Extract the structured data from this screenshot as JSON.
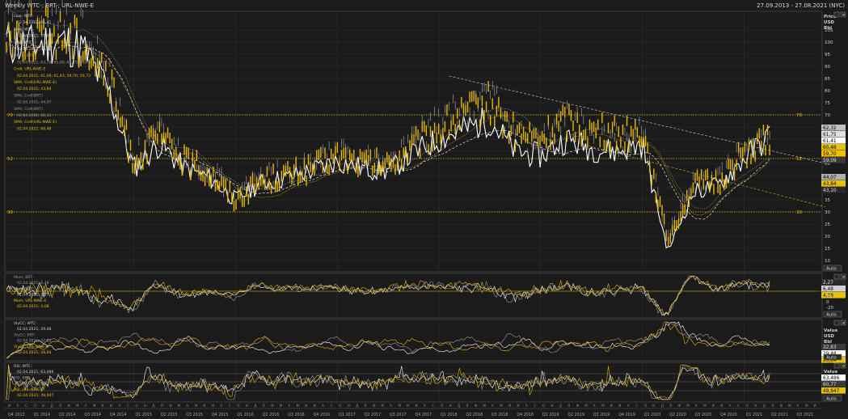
{
  "title": "Weekly WTC-; BRT-; URL-NWE-E",
  "date_range": "27.09.2013 - 27.08.2021 (NYC)",
  "right_axis": {
    "header": [
      "Price",
      "USD",
      "Bbl"
    ]
  },
  "price_axis": {
    "ticks": [
      105,
      100,
      95,
      90,
      85,
      80,
      75,
      70,
      65,
      60,
      55,
      50,
      45,
      40,
      35,
      30,
      25,
      20,
      15,
      10
    ],
    "badges": [
      {
        "text": "62,32",
        "bg": "#c0c0c0",
        "fg": "#000000"
      },
      {
        "text": "61,75",
        "bg": "#e0e0e0",
        "fg": "#000000"
      },
      {
        "text": "61,41",
        "bg": "#ffffff",
        "fg": "#000000"
      },
      {
        "text": "60,48",
        "bg": "#e6c200",
        "fg": "#000000"
      },
      {
        "text": "59,70",
        "bg": "#f0c000",
        "fg": "#000000"
      },
      {
        "text": "59,09",
        "bg": "#3a3a3a",
        "fg": "#dddddd"
      },
      {
        "text": "44,07",
        "bg": "#b0b0b0",
        "fg": "#000000"
      },
      {
        "text": "43,84",
        "bg": "#e6c200",
        "fg": "#000000"
      },
      {
        "text": "43,10",
        "bg": "#2a2a2a",
        "fg": "#dddddd"
      }
    ],
    "hlines": [
      {
        "label": "70",
        "value": 70
      },
      {
        "label": "52",
        "value": 52
      },
      {
        "label": "30",
        "value": 30
      }
    ],
    "auto_label": "Auto"
  },
  "legends": {
    "price": [
      "Line; WTC-",
      "02.04.2021; 61,41",
      "Stoc; WTC-",
      "02.04.2021; 59,09",
      "SMA; WTC-",
      "02.04.2021; 43,10",
      "OHLC; BRT-",
      "02.04.2021; 63,78; 65,00; 61,75; 61,75",
      "Cndl; URL-NWE-E",
      "02.04.2021; 61,09; 61,43; 59,70; 59,73",
      "SMA; Cndl(URL-NWE-E)",
      "02.04.2021; 43,84",
      "SMA; Cndl(BRT)",
      "02.04.2021; 44,07",
      "SMA; Cndl(BRT)",
      "02.04.2021; 62,32",
      "SMA; Cndl(URL-NWE-E)",
      "02.04.2021; 60,48"
    ],
    "mom": [
      "Mom; BRT-",
      "02.04.2021; 6,48",
      "Mom; WTC-",
      "02.04.2021; 2,27",
      "Mom; URL-NWE-E",
      "02.04.2021; 4,08"
    ],
    "vol": [
      "VlyCC; WTC-",
      "02.04.2021; 29,48",
      "VlyCC; BRT-",
      "02.04.2021; 32,83",
      "VlyCC; URL-NWE-E",
      "02.04.2021; 28,84"
    ],
    "rsi": [
      "RSI; WTC-",
      "02.04.2021; 63,486",
      "RSI; BRT-",
      "02.04.2021; 60,77",
      "RSI; URL-NWE-E",
      "02.04.2021; 49,947"
    ]
  },
  "mom_axis": {
    "ticks": [
      20,
      0,
      -20,
      -40
    ],
    "badges": [
      {
        "text": "2,27",
        "bg": "#2a2a2a",
        "fg": "#dddddd"
      },
      {
        "text": "6,48",
        "bg": "#d0d0d0",
        "fg": "#000000"
      },
      {
        "text": "4,08",
        "bg": "#e6c200",
        "fg": "#000000"
      }
    ],
    "auto_label": "Auto"
  },
  "vol_axis": {
    "header": [
      "Value",
      "USD",
      "Bbl"
    ],
    "badges": [
      {
        "text": "32,83",
        "bg": "#3a3a3a",
        "fg": "#dddddd"
      },
      {
        "text": "29,48",
        "bg": "#ffffff",
        "fg": "#000000"
      },
      {
        "text": "28,84",
        "bg": "#e6c200",
        "fg": "#000000"
      }
    ],
    "auto_label": "Auto"
  },
  "rsi_axis": {
    "header": [
      "Value"
    ],
    "badges": [
      {
        "text": "63,486",
        "bg": "#ffffff",
        "fg": "#000000"
      },
      {
        "text": "60,77",
        "bg": "#3a3a3a",
        "fg": "#dddddd"
      },
      {
        "text": "49,947",
        "bg": "#e6c200",
        "fg": "#000000"
      }
    ],
    "auto_label": "Auto"
  },
  "x_labels": [
    "Q4 2013",
    "Q1 2014",
    "Q2 2014",
    "Q3 2014",
    "Q4 2014",
    "Q1 2015",
    "Q2 2015",
    "Q3 2015",
    "Q4 2015",
    "Q1 2016",
    "Q2 2016",
    "Q3 2016",
    "Q4 2016",
    "Q1 2017",
    "Q2 2017",
    "Q3 2017",
    "Q4 2017",
    "Q1 2018",
    "Q2 2018",
    "Q3 2018",
    "Q4 2018",
    "Q1 2019",
    "Q2 2019",
    "Q3 2019",
    "Q4 2019",
    "Q1 2020",
    "Q2 2020",
    "Q3 2020",
    "Q4 2020",
    "Q1 2021",
    "Q2 2021",
    "Q3 2021"
  ],
  "colors": {
    "wtc": "#ffffff",
    "brt": "#9a9a9a",
    "url": "#e6b800",
    "bg": "#1b1b1b",
    "grid": "#2e2e2e"
  },
  "icons": [
    "square-icon",
    "close-icon"
  ],
  "chart_data": {
    "type": "line",
    "title": "Weekly WTC-; BRT-; URL-NWE-E",
    "xlabel": "",
    "ylabel": "Price USD Bbl",
    "ylim": [
      6,
      112
    ],
    "grid": true,
    "legend": "top-left",
    "x": [
      2013.75,
      2014.0,
      2014.25,
      2014.5,
      2014.75,
      2015.0,
      2015.25,
      2015.5,
      2015.75,
      2016.0,
      2016.25,
      2016.5,
      2016.75,
      2017.0,
      2017.25,
      2017.5,
      2017.75,
      2018.0,
      2018.25,
      2018.5,
      2018.75,
      2019.0,
      2019.25,
      2019.5,
      2019.75,
      2020.0,
      2020.25,
      2020.5,
      2020.75,
      2021.0,
      2021.25
    ],
    "series": [
      {
        "name": "WTC-",
        "values": [
          100,
          98,
          101,
          97,
          80,
          48,
          58,
          48,
          44,
          35,
          42,
          44,
          47,
          51,
          48,
          47,
          54,
          60,
          64,
          68,
          55,
          53,
          60,
          56,
          55,
          58,
          14,
          38,
          41,
          52,
          61.41
        ]
      },
      {
        "name": "BRT-",
        "values": [
          108,
          107,
          108,
          103,
          86,
          52,
          63,
          52,
          48,
          36,
          45,
          46,
          49,
          55,
          52,
          50,
          60,
          67,
          72,
          78,
          62,
          59,
          69,
          62,
          60,
          63,
          20,
          42,
          43,
          55,
          61.75
        ]
      },
      {
        "name": "URL-NWE-E",
        "values": [
          104,
          103,
          104,
          100,
          84,
          51,
          61,
          51,
          46,
          35,
          43,
          45,
          48,
          53,
          50,
          49,
          57,
          64,
          70,
          75,
          62,
          60,
          68,
          63,
          62,
          64,
          18,
          41,
          42,
          55,
          59.7
        ]
      }
    ],
    "hlines": [
      70,
      52,
      30
    ]
  }
}
